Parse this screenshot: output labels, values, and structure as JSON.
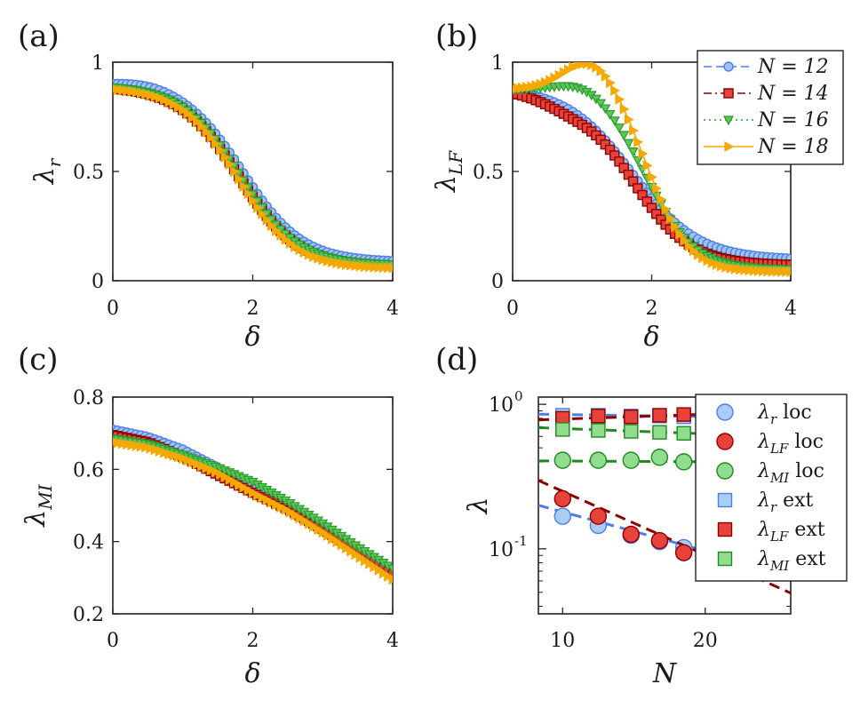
{
  "chart_data": [
    {
      "panel": "(a)",
      "type": "line",
      "xlabel": "δ",
      "ylabel": "λ",
      "ylabel_sub": "r",
      "xlim": [
        0,
        4
      ],
      "ylim": [
        0,
        1
      ],
      "xticks": [
        "0",
        "2",
        "4"
      ],
      "yticks": [
        "0",
        "0.5",
        "1"
      ],
      "series": [
        {
          "name": "N = 12",
          "color": "#4d7ee8",
          "marker": "circle",
          "style": "dashed",
          "v0": 0.905,
          "v4": 0.085,
          "c": 1.86,
          "k": 2.35,
          "bump": 0.015,
          "bc": 0.5
        },
        {
          "name": "N = 14",
          "color": "#8b0000",
          "marker": "square",
          "style": "dashdot",
          "v0": 0.89,
          "v4": 0.065,
          "c": 1.8,
          "k": 2.35,
          "bump": 0.0,
          "bc": 0.5
        },
        {
          "name": "N = 16",
          "color": "#2a9d2a",
          "marker": "triangle-down",
          "style": "dotted",
          "v0": 0.895,
          "v4": 0.07,
          "c": 1.82,
          "k": 2.4,
          "bump": 0.0,
          "bc": 0.5
        },
        {
          "name": "N = 18",
          "color": "#f5a800",
          "marker": "triangle-right",
          "style": "solid",
          "v0": 0.885,
          "v4": 0.055,
          "c": 1.79,
          "k": 2.45,
          "bump": 0.0,
          "bc": 0.5
        }
      ]
    },
    {
      "panel": "(b)",
      "type": "line",
      "xlabel": "δ",
      "ylabel": "λ",
      "ylabel_sub": "LF",
      "xlim": [
        0,
        4
      ],
      "ylim": [
        0,
        1
      ],
      "xticks": [
        "0",
        "2",
        "4"
      ],
      "yticks": [
        "0",
        "0.5",
        "1"
      ],
      "series": [
        {
          "name": "N = 12",
          "color": "#4d7ee8",
          "marker": "circle",
          "style": "dashed",
          "v0": 0.885,
          "v4": 0.095,
          "c": 1.72,
          "k": 2.1,
          "bump": 0.0,
          "bc": 0.6
        },
        {
          "name": "N = 14",
          "color": "#8b0000",
          "marker": "square",
          "style": "dashdot",
          "v0": 0.875,
          "v4": 0.07,
          "c": 1.7,
          "k": 2.4,
          "bump": -0.04,
          "bc": 0.8
        },
        {
          "name": "N = 16",
          "color": "#2a9d2a",
          "marker": "triangle-down",
          "style": "dotted",
          "v0": 0.875,
          "v4": 0.05,
          "c": 1.94,
          "k": 2.9,
          "bump": 0.05,
          "bc": 1.0
        },
        {
          "name": "N = 18",
          "color": "#f5a800",
          "marker": "triangle-right",
          "style": "solid",
          "v0": 0.88,
          "v4": 0.04,
          "c": 2.0,
          "k": 3.4,
          "bump": 0.15,
          "bc": 1.15
        }
      ]
    },
    {
      "panel": "(c)",
      "type": "line",
      "xlabel": "δ",
      "ylabel": "λ",
      "ylabel_sub": "MI",
      "xlim": [
        0,
        4
      ],
      "ylim": [
        0.2,
        0.8
      ],
      "xticks": [
        "0",
        "2",
        "4"
      ],
      "yticks": [
        "0.2",
        "0.4",
        "0.6",
        "0.8"
      ],
      "series": [
        {
          "name": "N = 12",
          "color": "#4d7ee8",
          "marker": "circle",
          "style": "dashed",
          "points": [
            [
              0,
              0.71
            ],
            [
              0.5,
              0.69
            ],
            [
              1,
              0.655
            ],
            [
              1.5,
              0.605
            ],
            [
              2,
              0.545
            ],
            [
              2.5,
              0.5
            ],
            [
              3,
              0.445
            ],
            [
              3.5,
              0.38
            ],
            [
              4,
              0.315
            ]
          ]
        },
        {
          "name": "N = 14",
          "color": "#8b0000",
          "marker": "square",
          "style": "dashdot",
          "points": [
            [
              0,
              0.695
            ],
            [
              0.5,
              0.675
            ],
            [
              1,
              0.635
            ],
            [
              1.5,
              0.585
            ],
            [
              2,
              0.535
            ],
            [
              2.5,
              0.49
            ],
            [
              3,
              0.435
            ],
            [
              3.5,
              0.375
            ],
            [
              4,
              0.31
            ]
          ]
        },
        {
          "name": "N = 16",
          "color": "#2a9d2a",
          "marker": "triangle-down",
          "style": "dotted",
          "points": [
            [
              0,
              0.685
            ],
            [
              0.5,
              0.67
            ],
            [
              1,
              0.64
            ],
            [
              1.5,
              0.605
            ],
            [
              2,
              0.565
            ],
            [
              2.5,
              0.51
            ],
            [
              3,
              0.45
            ],
            [
              3.5,
              0.385
            ],
            [
              4,
              0.325
            ]
          ]
        },
        {
          "name": "N = 18",
          "color": "#f5a800",
          "marker": "triangle-right",
          "style": "solid",
          "points": [
            [
              0,
              0.675
            ],
            [
              0.5,
              0.66
            ],
            [
              1,
              0.63
            ],
            [
              1.5,
              0.59
            ],
            [
              2,
              0.535
            ],
            [
              2.5,
              0.485
            ],
            [
              3,
              0.425
            ],
            [
              3.5,
              0.36
            ],
            [
              4,
              0.295
            ]
          ]
        }
      ]
    },
    {
      "panel": "(d)",
      "type": "scatter",
      "xlabel": "N",
      "ylabel": "λ",
      "ylabel_sub": "",
      "yscale": "log",
      "xlim": [
        8.3,
        26
      ],
      "ylim_log10": [
        -1.45,
        0.05
      ],
      "xticks": [
        "10",
        "20"
      ],
      "ytick_base": "10",
      "ytick_exps": [
        "0",
        "-1"
      ],
      "series": [
        {
          "name": "λ",
          "sub": "r",
          "tag": "loc",
          "color": "#4d7ee8",
          "fill": "#a9cdf3",
          "marker": "circle",
          "x": [
            10,
            12.5,
            14.8,
            16.8,
            18.5
          ],
          "y": [
            0.168,
            0.145,
            0.124,
            0.112,
            0.102
          ],
          "fit": [
            0.18,
            0.091
          ]
        },
        {
          "name": "λ",
          "sub": "LF",
          "tag": "loc",
          "color": "#8b0000",
          "fill": "#e8433a",
          "marker": "circle",
          "x": [
            10,
            12.5,
            14.8,
            16.8,
            18.5
          ],
          "y": [
            0.222,
            0.168,
            0.126,
            0.114,
            0.094
          ],
          "fit": [
            0.25,
            0.082
          ]
        },
        {
          "name": "λ",
          "sub": "MI",
          "tag": "loc",
          "color": "#1f8a1f",
          "fill": "#90dd90",
          "marker": "circle",
          "x": [
            10,
            12.5,
            14.8,
            16.8,
            18.5
          ],
          "y": [
            0.41,
            0.41,
            0.41,
            0.43,
            0.4
          ],
          "fit": [
            0.405,
            0.4
          ]
        },
        {
          "name": "λ",
          "sub": "r",
          "tag": "ext",
          "color": "#4d7ee8",
          "fill": "#a9cdf3",
          "marker": "square",
          "x": [
            10,
            12.5,
            14.8,
            16.8,
            18.5
          ],
          "y": [
            0.84,
            0.84,
            0.83,
            0.83,
            0.82
          ],
          "fit": [
            0.85,
            0.82
          ]
        },
        {
          "name": "λ",
          "sub": "LF",
          "tag": "ext",
          "color": "#8b0000",
          "fill": "#e8433a",
          "marker": "square",
          "x": [
            10,
            12.5,
            14.8,
            16.8,
            18.5
          ],
          "y": [
            0.8,
            0.83,
            0.82,
            0.84,
            0.85
          ],
          "fit": [
            0.79,
            0.86
          ]
        },
        {
          "name": "λ",
          "sub": "MI",
          "tag": "ext",
          "color": "#1f8a1f",
          "fill": "#90dd90",
          "marker": "square",
          "x": [
            10,
            12.5,
            14.8,
            16.8,
            18.5
          ],
          "y": [
            0.67,
            0.66,
            0.65,
            0.64,
            0.63
          ],
          "fit": [
            0.68,
            0.62
          ]
        }
      ]
    }
  ],
  "legend_b": [
    {
      "label": "N = 12"
    },
    {
      "label": "N = 14"
    },
    {
      "label": "N = 16"
    },
    {
      "label": "N = 18"
    }
  ],
  "legend_d": [
    {
      "main": "λ",
      "sub": "r",
      "tag": " loc"
    },
    {
      "main": "λ",
      "sub": "LF",
      "tag": " loc"
    },
    {
      "main": "λ",
      "sub": "MI",
      "tag": " loc"
    },
    {
      "main": "λ",
      "sub": "r",
      "tag": " ext"
    },
    {
      "main": "λ",
      "sub": "LF",
      "tag": " ext"
    },
    {
      "main": "λ",
      "sub": "MI",
      "tag": " ext"
    }
  ]
}
